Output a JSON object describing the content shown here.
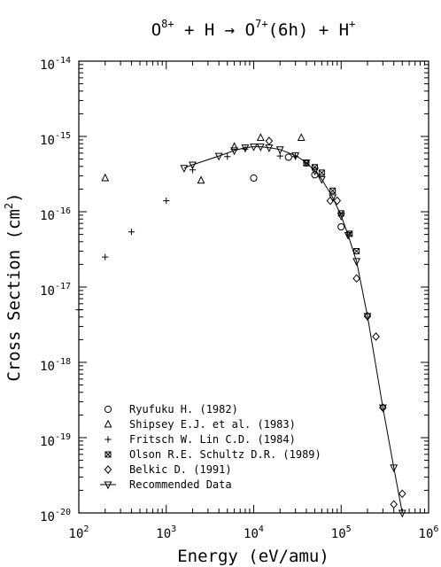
{
  "chart_data": {
    "type": "scatter",
    "title": {
      "lead": "O",
      "lead_sup": "8+",
      "mid1": " + H → O",
      "mid1_sup": "7+",
      "mid2": "(6h) + H",
      "mid2_sup": "+"
    },
    "xlabel": "Energy (eV/amu)",
    "ylabel": "Cross Section (cm",
    "ylabel_sup": "2",
    "ylabel_close": ")",
    "x_scale": "log",
    "y_scale": "log",
    "xlim": [
      100,
      1000000
    ],
    "ylim": [
      1e-20,
      1e-14
    ],
    "x_ticks": [
      {
        "base": "10",
        "exp": "2",
        "value": 100
      },
      {
        "base": "10",
        "exp": "3",
        "value": 1000
      },
      {
        "base": "10",
        "exp": "4",
        "value": 10000
      },
      {
        "base": "10",
        "exp": "5",
        "value": 100000
      },
      {
        "base": "10",
        "exp": "6",
        "value": 1000000
      }
    ],
    "y_ticks": [
      {
        "base": "10",
        "exp": "-20",
        "value": 1e-20
      },
      {
        "base": "10",
        "exp": "-19",
        "value": 1e-19
      },
      {
        "base": "10",
        "exp": "-18",
        "value": 1e-18
      },
      {
        "base": "10",
        "exp": "-17",
        "value": 1e-17
      },
      {
        "base": "10",
        "exp": "-16",
        "value": 1e-16
      },
      {
        "base": "10",
        "exp": "-15",
        "value": 1e-15
      },
      {
        "base": "10",
        "exp": "-14",
        "value": 1e-14
      }
    ],
    "grid": false,
    "legend_position": "bottom-left",
    "series": [
      {
        "name": "Ryufuku H. (1982)",
        "marker": "circle",
        "x": [
          10000,
          25000,
          50000,
          100000
        ],
        "y": [
          2.8e-16,
          5.3e-16,
          3.1e-16,
          6.3e-17
        ]
      },
      {
        "name": "Shipsey E.J. et al. (1983)",
        "marker": "triangle-up",
        "x": [
          200,
          2500,
          6000,
          12000,
          35000
        ],
        "y": [
          2.8e-16,
          2.6e-16,
          7.3e-16,
          9.6e-16,
          9.6e-16
        ]
      },
      {
        "name": "Fritsch W. Lin C.D. (1984)",
        "marker": "plus",
        "x": [
          100,
          200,
          400,
          1000,
          2000,
          5000,
          8000,
          20000,
          30000
        ],
        "y": [
          5e-18,
          2.5e-17,
          5.4e-17,
          1.4e-16,
          3.6e-16,
          5.4e-16,
          6.8e-16,
          5.5e-16,
          5.4e-16
        ]
      },
      {
        "name": "Olson R.E. Schultz D.R. (1989)",
        "marker": "x-box",
        "x": [
          40000,
          50000,
          60000,
          80000,
          100000,
          125000,
          150000
        ],
        "y": [
          4.4e-16,
          3.9e-16,
          3.3e-16,
          1.9e-16,
          9.5e-17,
          5.1e-17,
          3e-17
        ]
      },
      {
        "name": "Belkic D. (1991)",
        "marker": "diamond",
        "x": [
          15000,
          75000,
          90000,
          150000,
          200000,
          250000,
          300000,
          400000,
          500000
        ],
        "y": [
          8.7e-16,
          1.4e-16,
          1.4e-16,
          1.3e-17,
          4.1e-18,
          2.2e-18,
          2.5e-19,
          1.3e-20,
          1.8e-20
        ]
      },
      {
        "name": "Recommended Data",
        "marker": "triangle-down",
        "line": true,
        "x": [
          1600,
          2000,
          4000,
          6000,
          8000,
          10000,
          12000,
          15000,
          20000,
          30000,
          40000,
          50000,
          60000,
          80000,
          100000,
          120000,
          150000,
          200000,
          300000,
          400000,
          500000
        ],
        "y": [
          3.8e-16,
          4.2e-16,
          5.5e-16,
          6.5e-16,
          7.1e-16,
          7.3e-16,
          7.3e-16,
          7.1e-16,
          6.7e-16,
          5.6e-16,
          4.5e-16,
          3.5e-16,
          2.7e-16,
          1.55e-16,
          8.8e-17,
          4.9e-17,
          2.2e-17,
          4.1e-18,
          2.5e-19,
          4e-20,
          1e-20
        ]
      }
    ]
  }
}
